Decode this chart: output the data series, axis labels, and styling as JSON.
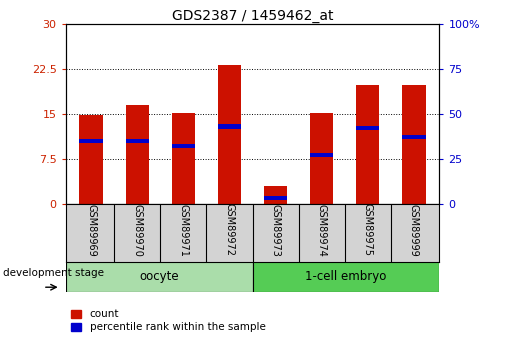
{
  "title": "GDS2387 / 1459462_at",
  "samples": [
    "GSM89969",
    "GSM89970",
    "GSM89971",
    "GSM89972",
    "GSM89973",
    "GSM89974",
    "GSM89975",
    "GSM89999"
  ],
  "counts": [
    14.8,
    16.5,
    15.1,
    23.2,
    3.0,
    15.1,
    19.8,
    19.8
  ],
  "percentile_ranks": [
    35,
    35,
    32,
    43,
    3,
    27,
    42,
    37
  ],
  "ylim_left": [
    0,
    30
  ],
  "ylim_right": [
    0,
    100
  ],
  "yticks_left": [
    0,
    7.5,
    15,
    22.5,
    30
  ],
  "yticks_right": [
    0,
    25,
    50,
    75,
    100
  ],
  "bar_color": "#cc1100",
  "percentile_color": "#0000cc",
  "bg_color": "#ffffff",
  "xlabel_area_color": "#d3d3d3",
  "group_oocyte_color": "#aaddaa",
  "group_embryo_color": "#55cc55",
  "dev_stage_label": "development stage",
  "legend_count": "count",
  "legend_percentile": "percentile rank within the sample",
  "bar_width": 0.5
}
